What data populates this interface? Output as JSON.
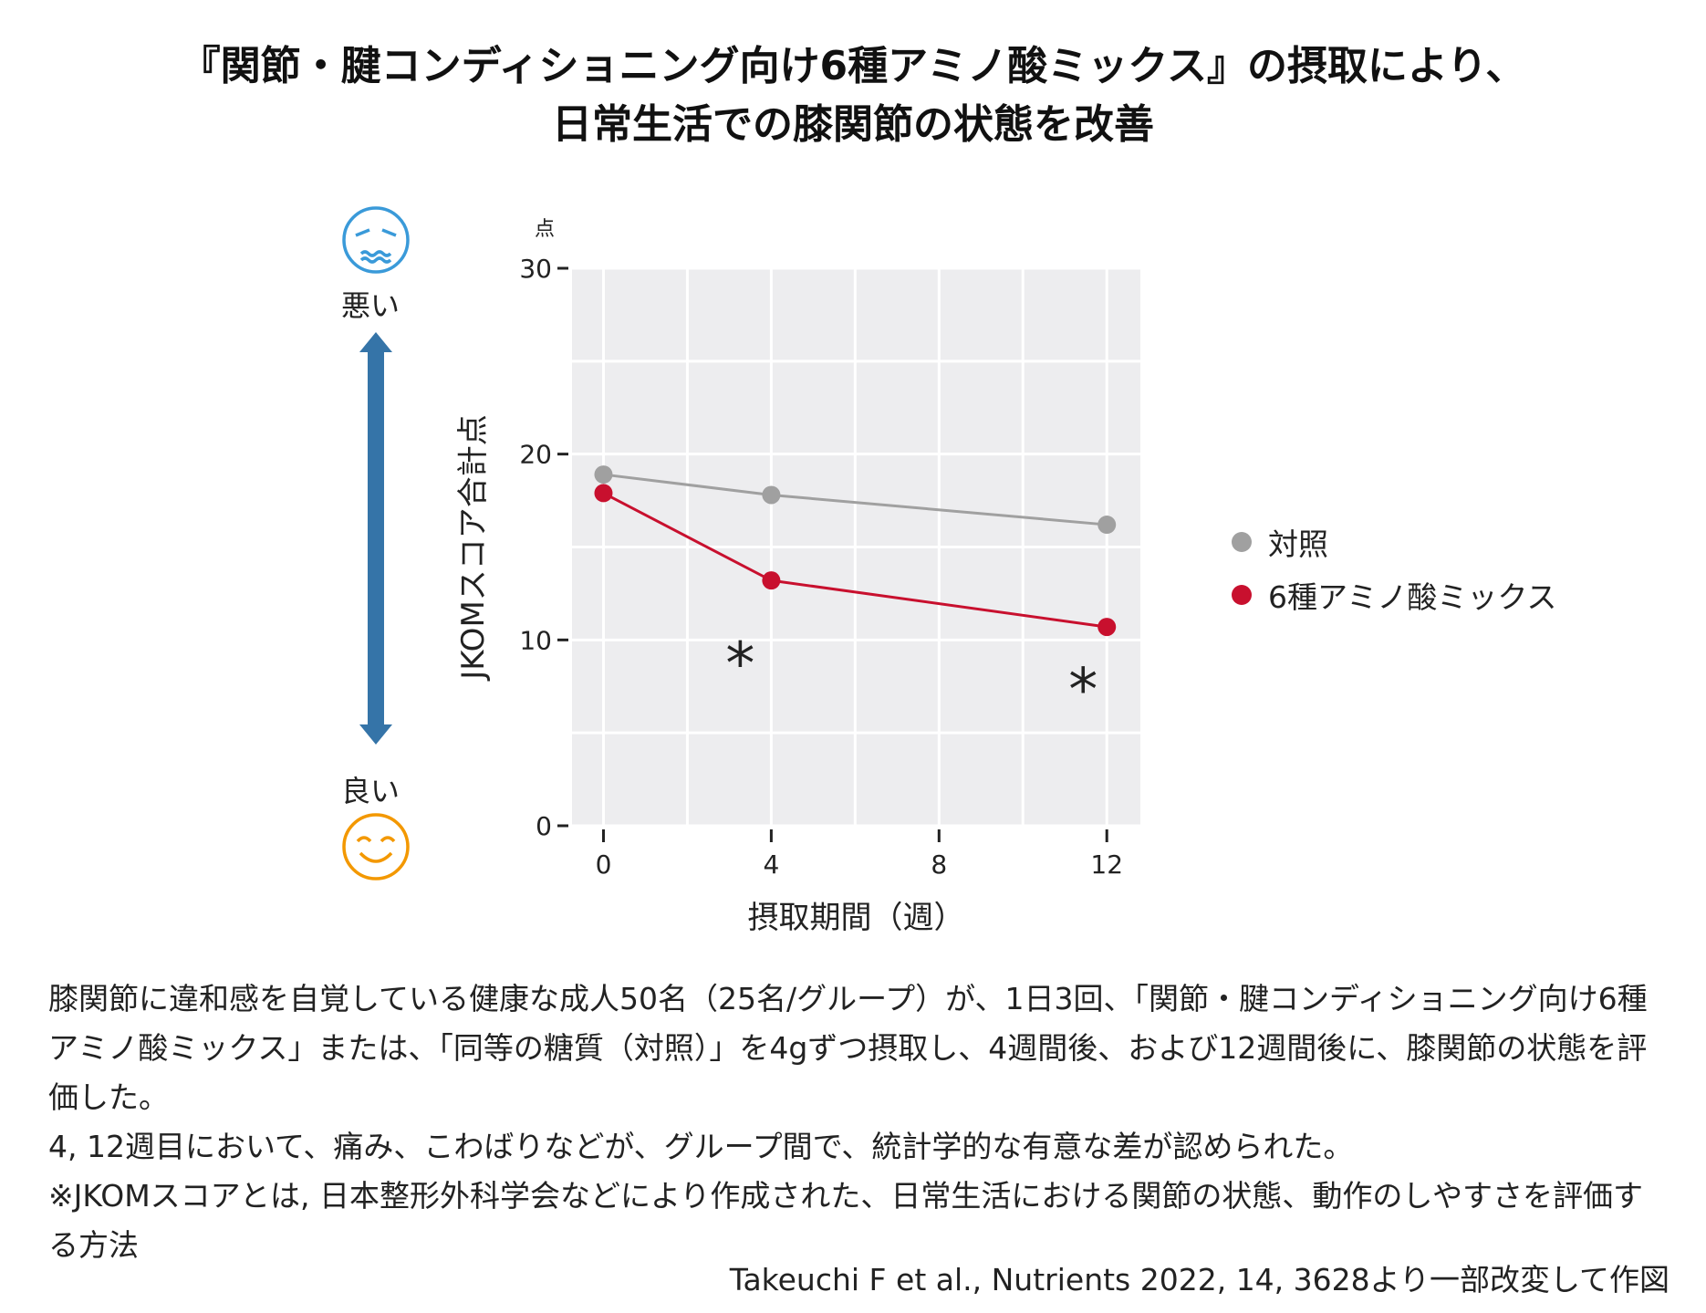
{
  "title": {
    "line1": "『関節・腱コンディショニング向け6種アミノ酸ミックス』の摂取により、",
    "line2": "日常生活での膝関節の状態を改善"
  },
  "scale_labels": {
    "bad": "悪い",
    "good": "良い"
  },
  "icons": {
    "bad": "worried-face-icon",
    "good": "smiling-face-icon",
    "arrow": "double-arrow-icon"
  },
  "colors": {
    "bad": "#3a9ad9",
    "good": "#f39800",
    "arrow": "#3574a8",
    "control": "#a0a0a0",
    "amino": "#c8102e",
    "plot_bg": "#ededef"
  },
  "chart_data": {
    "type": "line",
    "ylabel": "JKOMスコア合計点",
    "yunit": "点",
    "xlabel": "摂取期間（週）",
    "x": [
      0,
      4,
      12
    ],
    "xticks": [
      "0",
      "4",
      "8",
      "12"
    ],
    "yticks": [
      "0",
      "10",
      "20",
      "30"
    ],
    "xlim": [
      -0.75,
      12.8
    ],
    "ylim": [
      0,
      30
    ],
    "grid": true,
    "legend": "right",
    "series": [
      {
        "name": "対照",
        "values": [
          18.9,
          17.8,
          16.2
        ]
      },
      {
        "name": "6種アミノ酸ミックス",
        "values": [
          17.9,
          13.2,
          10.7
        ]
      }
    ],
    "annotations": [
      {
        "text": "*",
        "x": 4
      },
      {
        "text": "*",
        "x": 12
      }
    ]
  },
  "description": [
    "膝関節に違和感を自覚している健康な成人50名（25名/グループ）が、1日3回、「関節・腱コンディショニング向け6種アミノ酸ミックス」または、「同等の糖質（対照）」を4gずつ摂取し、4週間後、および12週間後に、膝関節の状態を評価した。",
    "4, 12週目において、痛み、こわばりなどが、グループ間で、統計学的な有意な差が認められた。",
    "※JKOMスコアとは, 日本整形外科学会などにより作成された、日常生活における関節の状態、動作のしやすさを評価する方法"
  ],
  "citation": "Takeuchi F et al., Nutrients 2022, 14, 3628より一部改変して作図"
}
